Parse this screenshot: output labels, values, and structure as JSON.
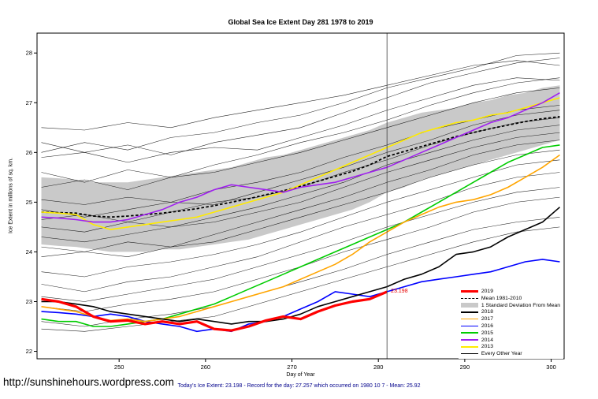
{
  "page": {
    "title": "Global Sea Ice Extent Day 281 1978 to 2019",
    "url": "http://sunshinehours.wordpress.com",
    "footer": "Today's Ice Extent: 23.198  - Record for the day: 27.257 which occurred on 1980 10 7  - Mean: 25.92"
  },
  "chart_data": {
    "type": "line",
    "title": "Global Sea Ice Extent Day 281 1978 to 2019",
    "xlabel": "Day of Year",
    "ylabel": "Ice Extent in millions of sq. km.",
    "xlim": [
      240.5,
      301.5
    ],
    "ylim": [
      21.85,
      28.4
    ],
    "xticks": [
      250,
      260,
      270,
      280,
      290,
      300
    ],
    "yticks": [
      22,
      23,
      24,
      25,
      26,
      27,
      28
    ],
    "grid": false,
    "legend_position": "bottom-right",
    "vline_x": 281,
    "annotation": {
      "x": 281,
      "y": 23.198,
      "text": "23.198",
      "color": "#e60000"
    },
    "x": [
      241,
      243,
      245,
      247,
      249,
      251,
      253,
      255,
      257,
      259,
      261,
      263,
      265,
      267,
      269,
      271,
      273,
      275,
      277,
      279,
      281,
      283,
      285,
      287,
      289,
      291,
      293,
      295,
      297,
      299,
      301
    ],
    "band": {
      "label": "1 Standard Deviation From Mean",
      "color": "#c9c9c9",
      "lower": [
        24.15,
        24.12,
        24.1,
        24.05,
        24.0,
        24.0,
        24.0,
        24.05,
        24.05,
        24.1,
        24.15,
        24.2,
        24.25,
        24.35,
        24.45,
        24.55,
        24.65,
        24.75,
        24.85,
        25.0,
        25.2,
        25.3,
        25.45,
        25.55,
        25.65,
        25.75,
        25.85,
        25.95,
        26.05,
        26.15,
        26.25
      ],
      "upper": [
        25.5,
        25.48,
        25.45,
        25.4,
        25.4,
        25.4,
        25.45,
        25.5,
        25.55,
        25.6,
        25.65,
        25.7,
        25.8,
        25.9,
        25.95,
        26.05,
        26.15,
        26.25,
        26.35,
        26.45,
        26.6,
        26.7,
        26.8,
        26.85,
        26.9,
        27.0,
        27.05,
        27.15,
        27.2,
        27.3,
        27.35
      ]
    },
    "mean": {
      "label": "Mean 1981-2010",
      "color": "#000000",
      "values": [
        24.8,
        24.79,
        24.78,
        24.72,
        24.7,
        24.72,
        24.75,
        24.78,
        24.82,
        24.87,
        24.93,
        25.0,
        25.07,
        25.15,
        25.23,
        25.32,
        25.42,
        25.52,
        25.62,
        25.75,
        25.92,
        26.02,
        26.12,
        26.22,
        26.32,
        26.4,
        26.48,
        26.55,
        26.62,
        26.68,
        26.72
      ]
    },
    "series": [
      {
        "label": "2019",
        "color": "#ff0000",
        "width": 3.2,
        "values": [
          23.05,
          23.0,
          22.9,
          22.7,
          22.6,
          22.62,
          22.55,
          22.6,
          22.55,
          22.6,
          22.45,
          22.42,
          22.5,
          22.62,
          22.7,
          22.65,
          22.8,
          22.92,
          23.0,
          23.05,
          23.198
        ]
      },
      {
        "label": "2018",
        "color": "#000000",
        "width": 1.6,
        "values": [
          23.0,
          23.0,
          22.95,
          22.9,
          22.8,
          22.75,
          22.7,
          22.65,
          22.6,
          22.65,
          22.6,
          22.55,
          22.6,
          22.6,
          22.65,
          22.75,
          22.9,
          23.0,
          23.1,
          23.2,
          23.3,
          23.45,
          23.55,
          23.7,
          23.95,
          24.0,
          24.1,
          24.3,
          24.45,
          24.6,
          24.9
        ]
      },
      {
        "label": "2017",
        "color": "#ffa500",
        "width": 1.6,
        "values": [
          22.9,
          22.85,
          22.8,
          22.7,
          22.62,
          22.65,
          22.6,
          22.65,
          22.7,
          22.8,
          22.9,
          23.0,
          23.1,
          23.2,
          23.3,
          23.45,
          23.6,
          23.75,
          23.95,
          24.2,
          24.4,
          24.6,
          24.75,
          24.9,
          25.0,
          25.05,
          25.15,
          25.3,
          25.5,
          25.7,
          25.95
        ]
      },
      {
        "label": "2016",
        "color": "#0000ff",
        "width": 1.6,
        "values": [
          22.8,
          22.78,
          22.75,
          22.7,
          22.75,
          22.7,
          22.6,
          22.55,
          22.5,
          22.4,
          22.45,
          22.4,
          22.55,
          22.6,
          22.7,
          22.85,
          23.0,
          23.2,
          23.15,
          23.1,
          23.2,
          23.3,
          23.4,
          23.45,
          23.5,
          23.55,
          23.6,
          23.7,
          23.8,
          23.85,
          23.8
        ]
      },
      {
        "label": "2015",
        "color": "#00cc00",
        "width": 1.6,
        "values": [
          22.65,
          22.6,
          22.6,
          22.5,
          22.5,
          22.55,
          22.6,
          22.65,
          22.75,
          22.85,
          22.95,
          23.1,
          23.25,
          23.4,
          23.55,
          23.7,
          23.85,
          24.0,
          24.15,
          24.3,
          24.45,
          24.6,
          24.8,
          25.0,
          25.2,
          25.4,
          25.6,
          25.8,
          25.95,
          26.1,
          26.15
        ]
      },
      {
        "label": "2014",
        "color": "#a020f0",
        "width": 1.6,
        "values": [
          24.7,
          24.68,
          24.65,
          24.6,
          24.6,
          24.65,
          24.75,
          24.85,
          25.0,
          25.1,
          25.25,
          25.35,
          25.3,
          25.25,
          25.2,
          25.3,
          25.35,
          25.4,
          25.5,
          25.6,
          25.7,
          25.85,
          26.0,
          26.15,
          26.3,
          26.45,
          26.6,
          26.7,
          26.85,
          27.0,
          27.2
        ]
      },
      {
        "label": "2013",
        "color": "#ffeb00",
        "width": 1.6,
        "values": [
          24.8,
          24.78,
          24.75,
          24.55,
          24.45,
          24.5,
          24.55,
          24.6,
          24.65,
          24.7,
          24.8,
          24.9,
          25.0,
          25.1,
          25.2,
          25.35,
          25.5,
          25.65,
          25.8,
          25.95,
          26.1,
          26.25,
          26.4,
          26.5,
          26.6,
          26.65,
          26.75,
          26.8,
          26.9,
          27.0,
          27.1
        ]
      }
    ],
    "every_other_year": {
      "label": "Every Other Year",
      "color": "#000000",
      "width": 0.55,
      "x": [
        241,
        246,
        251,
        256,
        261,
        266,
        271,
        276,
        281,
        286,
        291,
        296,
        301
      ],
      "lines": [
        [
          26.2,
          26.0,
          26.15,
          25.95,
          26.2,
          26.35,
          26.5,
          26.8,
          27.1,
          27.4,
          27.6,
          27.8,
          27.9
        ],
        [
          25.9,
          26.0,
          25.8,
          26.0,
          26.1,
          26.05,
          26.3,
          26.55,
          26.85,
          27.1,
          27.35,
          27.5,
          27.45
        ],
        [
          25.6,
          25.4,
          25.65,
          25.5,
          25.75,
          25.95,
          26.2,
          26.4,
          26.65,
          26.95,
          27.2,
          27.4,
          27.5
        ],
        [
          25.3,
          25.45,
          25.25,
          25.5,
          25.6,
          25.8,
          26.0,
          26.25,
          26.5,
          26.75,
          27.0,
          27.2,
          27.3
        ],
        [
          25.05,
          24.95,
          25.1,
          25.0,
          25.25,
          25.4,
          25.6,
          25.9,
          26.15,
          26.45,
          26.65,
          26.85,
          26.95
        ],
        [
          24.85,
          24.7,
          24.85,
          25.0,
          24.95,
          25.2,
          25.45,
          25.7,
          26.0,
          26.25,
          26.55,
          26.75,
          26.85
        ],
        [
          24.65,
          24.75,
          24.6,
          24.8,
          25.0,
          25.1,
          25.3,
          25.6,
          25.85,
          26.15,
          26.4,
          26.6,
          26.7
        ],
        [
          24.5,
          24.4,
          24.6,
          24.5,
          24.7,
          24.9,
          25.15,
          25.4,
          25.75,
          26.0,
          26.25,
          26.45,
          26.55
        ],
        [
          24.3,
          24.2,
          24.35,
          24.5,
          24.6,
          24.8,
          25.0,
          25.3,
          25.6,
          25.85,
          26.1,
          26.3,
          26.4
        ],
        [
          24.1,
          24.0,
          24.2,
          24.1,
          24.35,
          24.6,
          24.85,
          25.1,
          25.4,
          25.65,
          25.95,
          26.15,
          26.25
        ],
        [
          23.9,
          24.0,
          23.9,
          24.1,
          24.2,
          24.45,
          24.7,
          24.95,
          25.2,
          25.5,
          25.75,
          25.95,
          26.05
        ],
        [
          23.6,
          23.5,
          23.7,
          23.8,
          23.95,
          24.15,
          24.4,
          24.7,
          25.0,
          25.25,
          25.5,
          25.75,
          25.85
        ],
        [
          23.35,
          23.2,
          23.4,
          23.5,
          23.7,
          23.9,
          24.2,
          24.5,
          24.75,
          25.0,
          25.3,
          25.5,
          25.6
        ],
        [
          23.1,
          23.0,
          23.15,
          23.3,
          23.45,
          23.7,
          23.95,
          24.2,
          24.5,
          24.75,
          25.0,
          25.2,
          25.3
        ],
        [
          22.9,
          22.8,
          22.95,
          23.05,
          23.2,
          23.45,
          23.7,
          24.0,
          24.25,
          24.5,
          24.8,
          25.0,
          25.1
        ],
        [
          22.6,
          22.5,
          22.65,
          22.75,
          22.9,
          23.15,
          23.4,
          23.65,
          23.95,
          24.2,
          24.45,
          24.6,
          24.7
        ],
        [
          22.45,
          22.4,
          22.5,
          22.6,
          22.7,
          22.95,
          23.2,
          23.45,
          23.7,
          23.95,
          24.2,
          24.4,
          24.5
        ],
        [
          26.5,
          26.45,
          26.6,
          26.5,
          26.7,
          26.85,
          27.0,
          27.15,
          27.35,
          27.55,
          27.75,
          27.85,
          27.75
        ],
        [
          26.0,
          26.2,
          26.05,
          26.3,
          26.4,
          26.6,
          26.75,
          27.0,
          27.3,
          27.5,
          27.7,
          27.95,
          28.0
        ]
      ]
    },
    "legend": [
      {
        "label": "2019",
        "style": "thick",
        "color": "#ff0000"
      },
      {
        "label": "Mean 1981-2010",
        "style": "dashed",
        "color": "#000000"
      },
      {
        "label": "1 Standard Deviation From Mean",
        "style": "band",
        "color": "#c9c9c9"
      },
      {
        "label": "2018",
        "style": "solid",
        "color": "#000000"
      },
      {
        "label": "2017",
        "style": "solid",
        "color": "#ffa500"
      },
      {
        "label": "2016",
        "style": "solid",
        "color": "#0000ff"
      },
      {
        "label": "2015",
        "style": "solid",
        "color": "#00cc00"
      },
      {
        "label": "2014",
        "style": "solid",
        "color": "#a020f0"
      },
      {
        "label": "2013",
        "style": "solid",
        "color": "#ffeb00"
      },
      {
        "label": "Every Other Year",
        "style": "thin",
        "color": "#000000"
      }
    ]
  }
}
